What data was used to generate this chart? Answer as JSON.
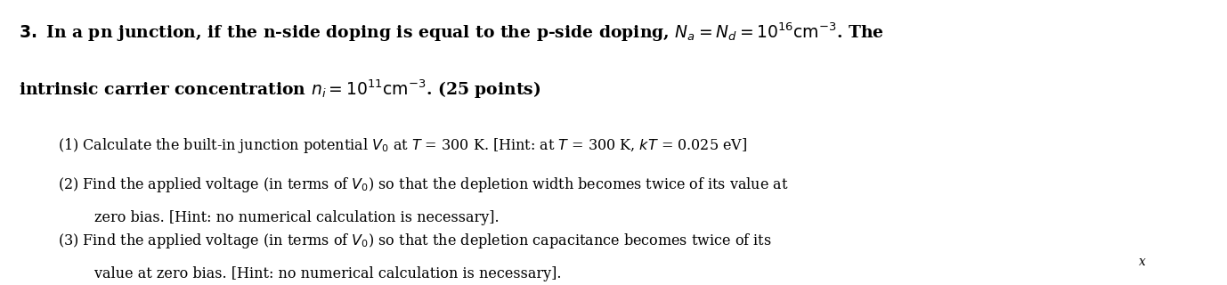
{
  "background_color": "#ffffff",
  "text_color": "#000000",
  "fig_width": 13.78,
  "fig_height": 3.2,
  "dpi": 100,
  "title_bold_text": "3. In a pn junction, if the n-side doping is equal to the p-side doping, ",
  "title_math_1": "N_a = N_d = 10^{16}\\,\\mathrm{cm}^{-3}",
  "title_end": ". The",
  "title_line2_start": "intrinsic carrier concentration ",
  "title_math_2": "n_i = 10^{11}\\,\\mathrm{cm}^{-3}",
  "title_line2_end": ". (25 points)",
  "item1": "(1) Calculate the built-in junction potential $V_0$ at $T$ = 300 K. [Hint: at $T$ = 300 K, $kT$ = 0.025 eV]",
  "item2a": "(2) Find the applied voltage (in terms of $V_0$) so that the depletion width becomes twice of its value at",
  "item2b": "        zero bias. [Hint: no numerical calculation is necessary].",
  "item3a": "(3) Find the applied voltage (in terms of $V_0$) so that the depletion capacitance becomes twice of its",
  "item3b": "        value at zero bias. [Hint: no numerical calculation is necessary].",
  "watermark": "x",
  "font_size_title": 13.5,
  "font_size_body": 11.5,
  "font_size_watermark": 10
}
